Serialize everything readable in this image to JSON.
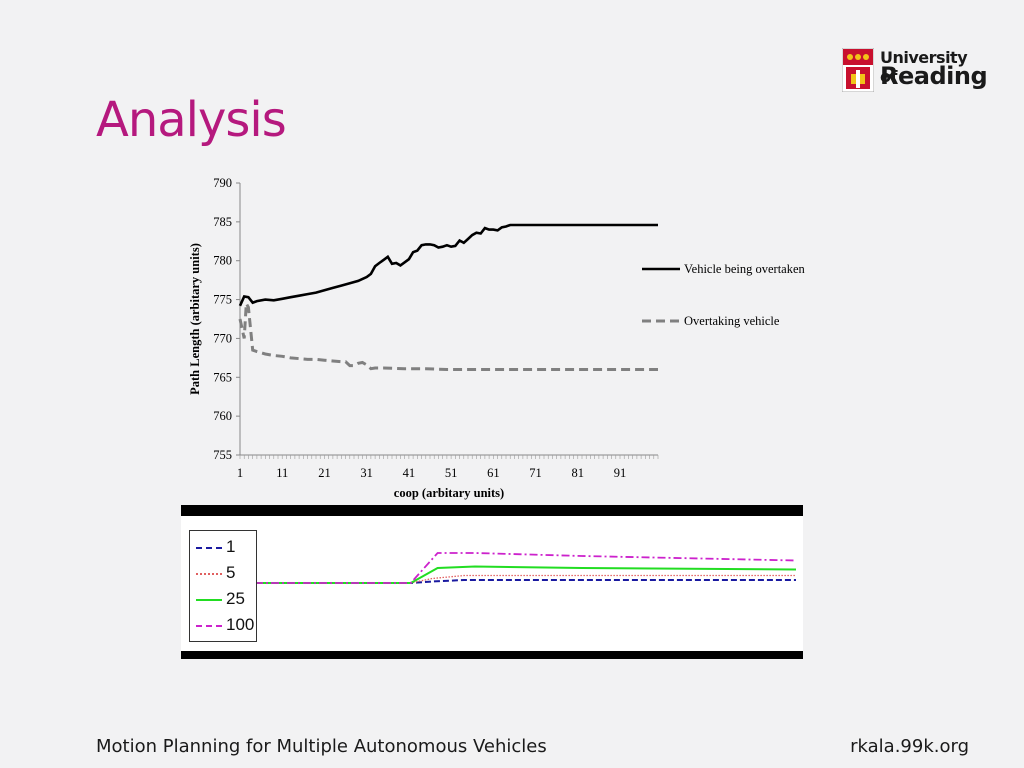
{
  "slide": {
    "title": "Analysis",
    "footer_left": "Motion Planning  for Multiple Autonomous Vehicles",
    "footer_right": "rkala.99k.org"
  },
  "logo": {
    "line1": "University of",
    "line2": "Reading",
    "icon": "university-crest-icon"
  },
  "colors": {
    "title": "#b5197e",
    "series1": "#000000",
    "series2": "#808080",
    "line_1": "#1a1aa0",
    "line_5": "#e06060",
    "line_25": "#22dd22",
    "line_100": "#cc22cc"
  },
  "chart_data": [
    {
      "type": "line",
      "xlabel": "coop (arbitary units)",
      "ylabel": "Path Length (arbitary units)",
      "ylim": [
        755,
        790
      ],
      "yticks": [
        755,
        760,
        765,
        770,
        775,
        780,
        785,
        790
      ],
      "xlim": [
        1,
        100
      ],
      "xticks": [
        1,
        11,
        21,
        31,
        41,
        51,
        61,
        71,
        81,
        91
      ],
      "grid": false,
      "legend": "right",
      "series": [
        {
          "name": "Vehicle being overtaken",
          "style": "solid",
          "x": [
            1,
            2,
            3,
            4,
            5,
            7,
            9,
            11,
            13,
            15,
            17,
            19,
            21,
            23,
            25,
            27,
            29,
            31,
            32,
            33,
            34,
            35,
            36,
            37,
            38,
            39,
            40,
            41,
            42,
            43,
            44,
            45,
            46,
            47,
            48,
            49,
            50,
            51,
            52,
            53,
            54,
            55,
            56,
            57,
            58,
            59,
            60,
            61,
            62,
            63,
            64,
            65,
            66,
            67,
            68,
            70,
            75,
            80,
            85,
            90,
            95,
            100
          ],
          "values": [
            774.2,
            775.4,
            775.3,
            774.6,
            774.8,
            775.0,
            774.9,
            775.1,
            775.3,
            775.5,
            775.7,
            775.9,
            776.2,
            776.5,
            776.8,
            777.1,
            777.4,
            777.9,
            778.3,
            779.3,
            779.7,
            780.1,
            780.5,
            779.6,
            779.7,
            779.4,
            779.8,
            780.2,
            781.1,
            781.3,
            782.0,
            782.1,
            782.1,
            782.0,
            781.7,
            781.8,
            782.0,
            781.8,
            781.9,
            782.6,
            782.3,
            782.8,
            783.3,
            783.6,
            783.5,
            784.2,
            784.0,
            784.0,
            783.9,
            784.3,
            784.4,
            784.6,
            784.6,
            784.6,
            784.6,
            784.6,
            784.6,
            784.6,
            784.6,
            784.6,
            784.6,
            784.6
          ]
        },
        {
          "name": "Overtaking vehicle",
          "style": "dashed",
          "x": [
            1,
            2,
            2.5,
            3,
            4,
            5,
            7,
            9,
            11,
            13,
            15,
            17,
            19,
            21,
            23,
            25,
            26,
            27,
            28,
            29,
            30,
            31,
            32,
            33,
            35,
            40,
            45,
            50,
            55,
            60,
            65,
            70,
            75,
            80,
            85,
            90,
            95,
            100
          ],
          "values": [
            772.5,
            770.0,
            774.5,
            774.0,
            768.5,
            768.3,
            768.0,
            767.8,
            767.7,
            767.5,
            767.4,
            767.3,
            767.3,
            767.2,
            767.1,
            767.0,
            767.0,
            766.5,
            766.5,
            766.8,
            766.9,
            766.6,
            766.1,
            766.2,
            766.2,
            766.1,
            766.1,
            766.0,
            766.0,
            766.0,
            766.0,
            766.0,
            766.0,
            766.0,
            766.0,
            766.0,
            766.0,
            766.0
          ]
        }
      ]
    },
    {
      "type": "line",
      "legend": "top-left",
      "series": [
        {
          "name": "1",
          "style": "dashed",
          "x": [
            0,
            28,
            32,
            38,
            100
          ],
          "values": [
            0.0,
            0.0,
            0.01,
            0.02,
            0.02
          ]
        },
        {
          "name": "5",
          "style": "dotted",
          "x": [
            0,
            28,
            32,
            38,
            100
          ],
          "values": [
            0.0,
            0.0,
            0.03,
            0.05,
            0.05
          ]
        },
        {
          "name": "25",
          "style": "solid",
          "x": [
            0,
            28,
            33,
            40,
            60,
            100
          ],
          "values": [
            0.0,
            0.0,
            0.1,
            0.11,
            0.1,
            0.09
          ]
        },
        {
          "name": "100",
          "style": "dashdot",
          "x": [
            0,
            28,
            33,
            40,
            60,
            100
          ],
          "values": [
            0.0,
            0.0,
            0.2,
            0.2,
            0.18,
            0.15
          ]
        }
      ]
    }
  ]
}
